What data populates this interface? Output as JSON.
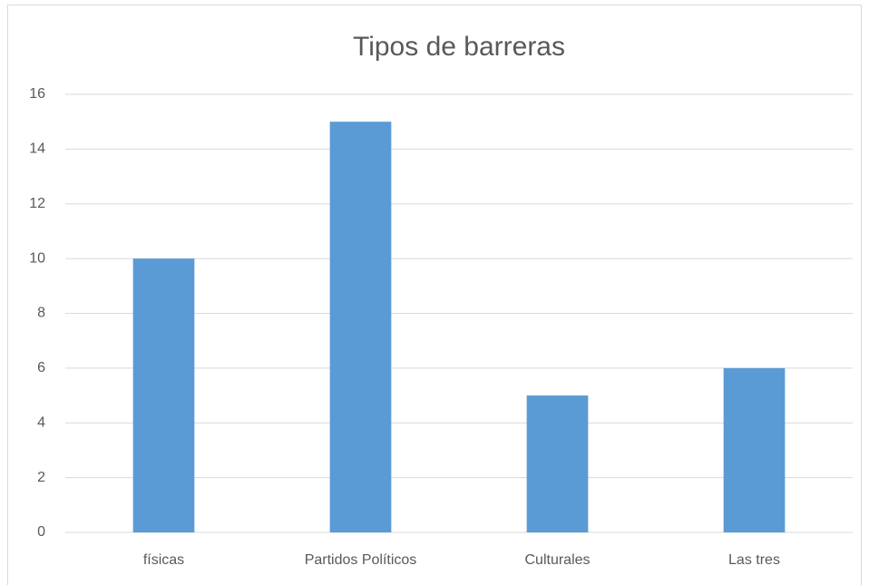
{
  "chart_data": {
    "type": "bar",
    "title": "Tipos de barreras",
    "categories": [
      "físicas",
      "Partidos Políticos",
      "Culturales",
      "Las tres"
    ],
    "values": [
      10,
      15,
      5,
      6
    ],
    "color": "#5b9bd5",
    "ylim": [
      0,
      16
    ],
    "yticks": [
      0,
      2,
      4,
      6,
      8,
      10,
      12,
      14,
      16
    ],
    "grid": true
  }
}
